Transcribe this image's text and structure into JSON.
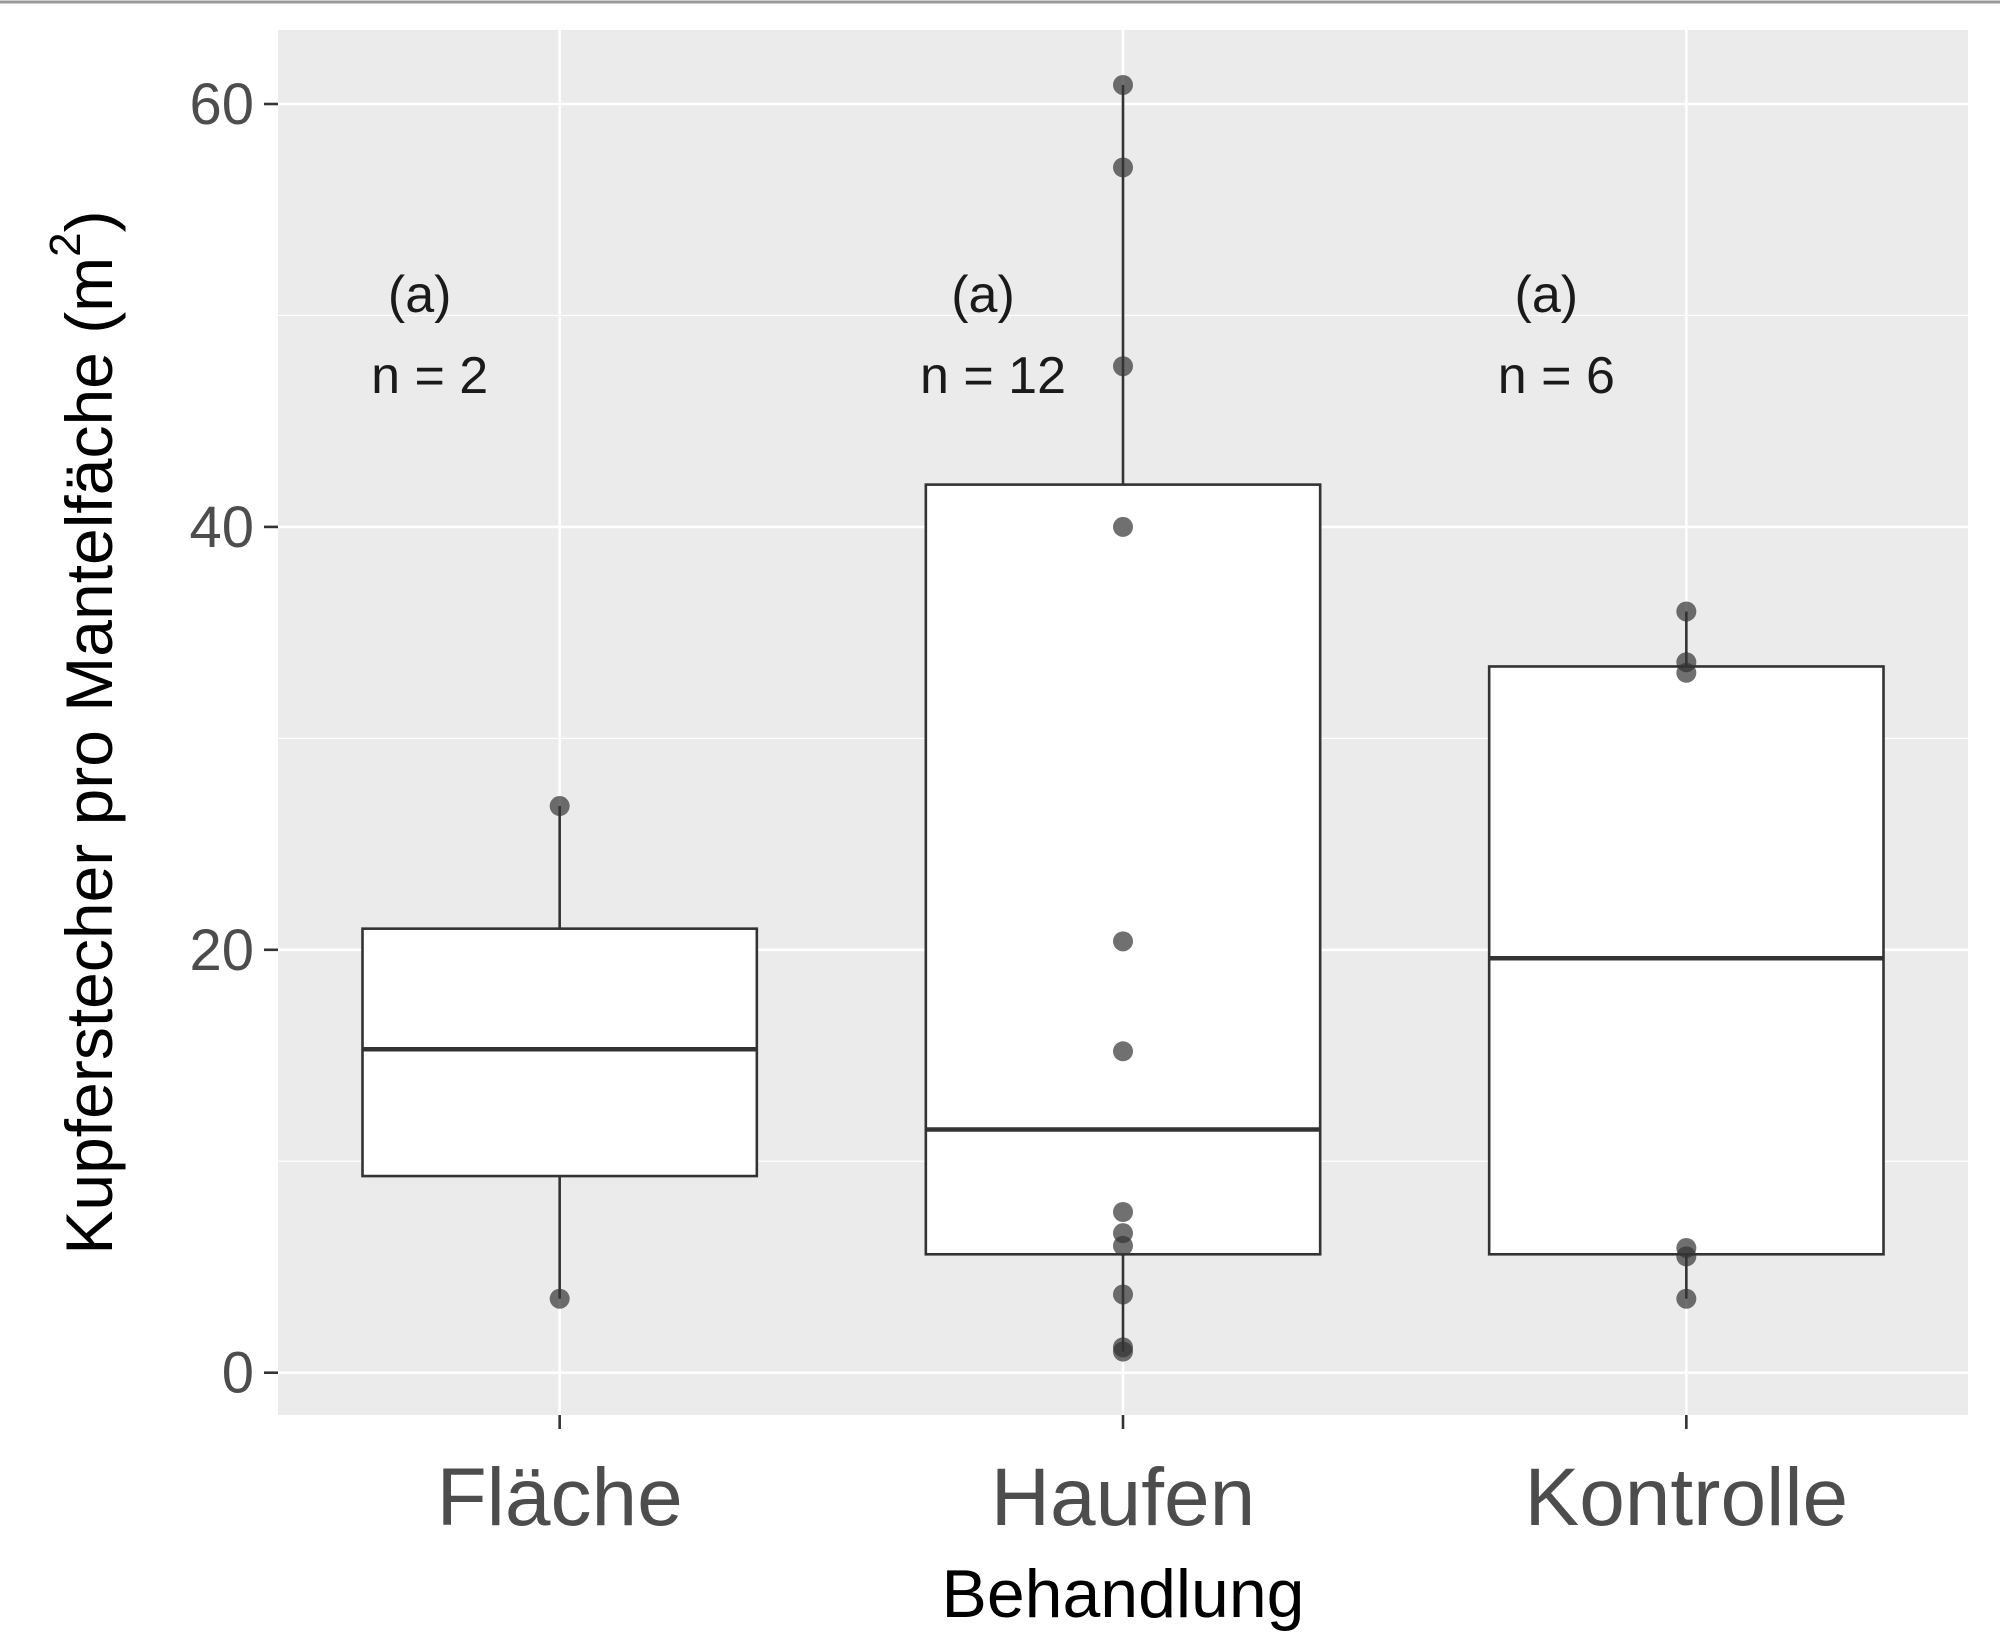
{
  "chart_data": {
    "type": "boxplot",
    "xlabel": "Behandlung",
    "ylabel_main": "Kupferstecher pro Mantelfäche (m",
    "ylabel_sup": "2",
    "ylabel_close": ")",
    "ylim": [
      -2,
      63.5
    ],
    "yticks": [
      "0",
      "20",
      "40",
      "60"
    ],
    "grid": true,
    "categories": [
      "Fläche",
      "Haufen",
      "Kontrolle"
    ],
    "boxes": [
      {
        "name": "Fläche",
        "whisker_low": 3.5,
        "q1": 9.3,
        "median": 15.3,
        "q3": 21.0,
        "whisker_high": 26.8,
        "points": [
          3.5,
          26.8
        ],
        "letter": "(a)",
        "n_label": "n = 2"
      },
      {
        "name": "Haufen",
        "whisker_low": 1.0,
        "q1": 5.6,
        "median": 11.5,
        "q3": 42.0,
        "whisker_high": 60.9,
        "points": [
          1.0,
          1.2,
          3.7,
          6.0,
          6.6,
          7.6,
          15.2,
          20.4,
          40.0,
          47.6,
          57.0,
          60.9
        ],
        "letter": "(a)",
        "n_label": "n = 12"
      },
      {
        "name": "Kontrolle",
        "whisker_low": 3.5,
        "q1": 5.6,
        "median": 19.6,
        "q3": 33.4,
        "whisker_high": 36.0,
        "points": [
          3.5,
          5.5,
          5.9,
          33.1,
          33.6,
          36.0
        ],
        "letter": "(a)",
        "n_label": "n = 6"
      }
    ],
    "colors": {
      "panel": "#ebebeb",
      "grid": "#ffffff",
      "box_fill": "#ffffff",
      "box_stroke": "#333333",
      "point": "#333333"
    }
  }
}
